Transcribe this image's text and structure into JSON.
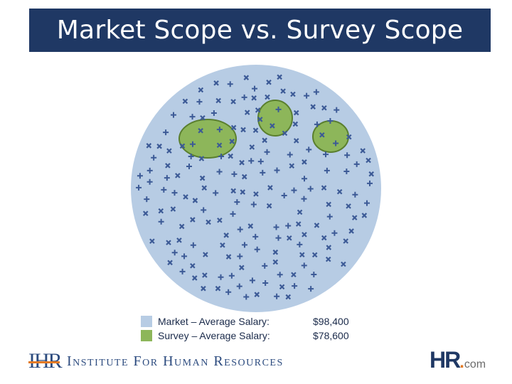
{
  "title": "Market Scope vs. Survey Scope",
  "colors": {
    "title_bar": "#1f3864",
    "market": "#b7cce4",
    "survey": "#8db65a",
    "survey_outline": "#5a7f2e",
    "marker": "#3c5a96"
  },
  "legend": [
    {
      "label": "Market – Average Salary:",
      "value": "$98,400",
      "color": "#b7cce4"
    },
    {
      "label": "Survey – Average Salary:",
      "value": "$78,600",
      "color": "#8db65a"
    }
  ],
  "footer": {
    "org_mark": "IHR",
    "org_name": "Institute For Human Resources",
    "brand_mark": "HR",
    "brand_dot": ".",
    "brand_suffix": "com"
  }
}
